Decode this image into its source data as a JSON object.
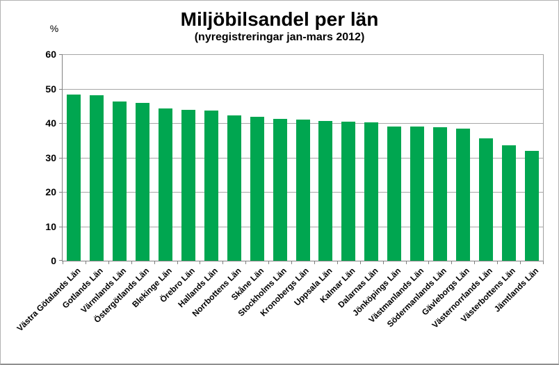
{
  "chart_data": {
    "type": "bar",
    "title": "Miljöbilsandel per län",
    "subtitle": "(nyregistreringar jan-mars 2012)",
    "ylabel": "%",
    "xlabel": "",
    "ylim": [
      0,
      60
    ],
    "yticks": [
      0,
      10,
      20,
      30,
      40,
      50,
      60
    ],
    "grid": true,
    "legend": false,
    "bar_color": "#00a650",
    "gridline_color": "#a6a6a6",
    "axis_color": "#808080",
    "categories": [
      "Västra Götalands Län",
      "Gotlands Län",
      "Värmlands Län",
      "Östergötlands Län",
      "Blekinge Län",
      "Örebro Län",
      "Hallands Län",
      "Norrbottens Län",
      "Skåne Län",
      "Stockholms Län",
      "Kronobergs Län",
      "Uppsala Län",
      "Kalmar Län",
      "Dalarnas Län",
      "Jönköpings Län",
      "Västmanlands Län",
      "Södermanlands Län",
      "Gävleborgs Län",
      "Västernorrlands Län",
      "Västerbottens Län",
      "Jämtlands Län"
    ],
    "values": [
      48.3,
      48.1,
      46.2,
      45.8,
      44.2,
      43.9,
      43.6,
      42.3,
      41.8,
      41.2,
      41.0,
      40.7,
      40.4,
      40.2,
      39.0,
      38.9,
      38.7,
      38.4,
      35.5,
      33.5,
      31.9
    ]
  }
}
